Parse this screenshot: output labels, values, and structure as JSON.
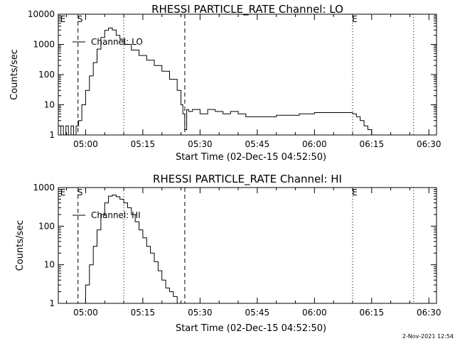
{
  "footer": {
    "date": "2-Nov-2021 12:54"
  },
  "chart_data": [
    {
      "type": "line",
      "title": "RHESSI PARTICLE_RATE Channel: LO",
      "xlabel": "Start Time (02-Dec-15 04:52:50)",
      "ylabel": "Counts/sec",
      "legend": {
        "label": "Channel: LO",
        "placement": "top-left"
      },
      "yscale": "log",
      "xlim": [
        "04:52:50",
        "06:32:00"
      ],
      "ylim": [
        1,
        10000
      ],
      "xticks": [
        "05:00",
        "05:15",
        "05:30",
        "05:45",
        "06:00",
        "06:15",
        "06:30"
      ],
      "yticks": [
        "1",
        "10",
        "100",
        "1000",
        "10000"
      ],
      "markers": [
        {
          "label": "E",
          "time": "04:53:30",
          "style": "none"
        },
        {
          "label": "S",
          "time": "04:58:00",
          "style": "dashed"
        },
        {
          "label": "",
          "time": "05:10:00",
          "style": "dotted"
        },
        {
          "label": "",
          "time": "05:26:00",
          "style": "dashed"
        },
        {
          "label": "E",
          "time": "06:10:00",
          "style": "dotted"
        },
        {
          "label": "",
          "time": "06:26:00",
          "style": "dotted"
        }
      ],
      "series": [
        {
          "name": "Channel: LO",
          "x": [
            "04:52:50",
            "04:53:30",
            "04:54:10",
            "04:54:50",
            "04:55:30",
            "04:56:10",
            "04:56:50",
            "04:57:30",
            "04:58:10",
            "04:59:00",
            "05:00:00",
            "05:01:00",
            "05:02:00",
            "05:03:00",
            "05:04:00",
            "05:05:00",
            "05:06:00",
            "05:07:00",
            "05:08:00",
            "05:09:00",
            "05:10:00",
            "05:12:00",
            "05:14:00",
            "05:16:00",
            "05:18:00",
            "05:20:00",
            "05:22:00",
            "05:24:00",
            "05:25:00",
            "05:25:30",
            "05:26:00",
            "05:26:30",
            "05:27:00",
            "05:28:00",
            "05:30:00",
            "05:32:00",
            "05:34:00",
            "05:36:00",
            "05:38:00",
            "05:40:00",
            "05:42:00",
            "05:44:00",
            "05:46:00",
            "05:48:00",
            "05:50:00",
            "05:52:00",
            "05:54:00",
            "05:56:00",
            "05:58:00",
            "06:00:00",
            "06:02:00",
            "06:04:00",
            "06:06:00",
            "06:08:00",
            "06:10:00",
            "06:11:00",
            "06:12:00",
            "06:13:00",
            "06:14:00",
            "06:15:00",
            "06:16:00",
            "06:17:00",
            "06:18:00",
            "06:19:00",
            "06:20:00",
            "06:21:00",
            "06:22:00",
            "06:23:00",
            "06:24:00",
            "06:25:00",
            "06:26:00"
          ],
          "y": [
            1,
            2,
            1,
            2,
            1,
            2,
            1,
            2,
            3,
            10,
            30,
            90,
            250,
            700,
            1700,
            2900,
            3500,
            3000,
            2000,
            1500,
            1000,
            650,
            430,
            300,
            200,
            130,
            70,
            30,
            10,
            5,
            1.5,
            7,
            6,
            7,
            5,
            7,
            6,
            5,
            6,
            5,
            4,
            4,
            4,
            4,
            4.5,
            4.5,
            4.5,
            5,
            5,
            5.5,
            5.5,
            5.5,
            5.5,
            5.5,
            5,
            4,
            3,
            2,
            1.5,
            1,
            1,
            1,
            1,
            1,
            1,
            1,
            1,
            1,
            1,
            1,
            1
          ]
        }
      ]
    },
    {
      "type": "line",
      "title": "RHESSI PARTICLE_RATE Channel: HI",
      "xlabel": "Start Time (02-Dec-15 04:52:50)",
      "ylabel": "Counts/sec",
      "legend": {
        "label": "Channel: HI",
        "placement": "top-left"
      },
      "yscale": "log",
      "xlim": [
        "04:52:50",
        "06:32:00"
      ],
      "ylim": [
        1,
        1000
      ],
      "xticks": [
        "05:00",
        "05:15",
        "05:30",
        "05:45",
        "06:00",
        "06:15",
        "06:30"
      ],
      "yticks": [
        "1",
        "10",
        "100",
        "1000"
      ],
      "markers": [
        {
          "label": "E",
          "time": "04:53:30",
          "style": "none"
        },
        {
          "label": "S",
          "time": "04:58:00",
          "style": "dashed"
        },
        {
          "label": "",
          "time": "05:10:00",
          "style": "dotted"
        },
        {
          "label": "",
          "time": "05:26:00",
          "style": "dashed"
        },
        {
          "label": "E",
          "time": "06:10:00",
          "style": "dotted"
        },
        {
          "label": "",
          "time": "06:26:00",
          "style": "dotted"
        }
      ],
      "series": [
        {
          "name": "Channel: HI",
          "x": [
            "04:59:00",
            "05:00:00",
            "05:01:00",
            "05:02:00",
            "05:03:00",
            "05:04:00",
            "05:05:00",
            "05:06:00",
            "05:07:00",
            "05:08:00",
            "05:09:00",
            "05:10:00",
            "05:11:00",
            "05:12:00",
            "05:13:00",
            "05:14:00",
            "05:15:00",
            "05:16:00",
            "05:17:00",
            "05:18:00",
            "05:19:00",
            "05:20:00",
            "05:21:00",
            "05:22:00",
            "05:23:00",
            "05:24:00"
          ],
          "y": [
            1,
            3,
            10,
            30,
            80,
            200,
            400,
            600,
            640,
            580,
            500,
            400,
            300,
            200,
            130,
            80,
            50,
            30,
            20,
            12,
            7,
            4,
            2.5,
            2,
            1.5,
            1
          ]
        }
      ]
    }
  ]
}
